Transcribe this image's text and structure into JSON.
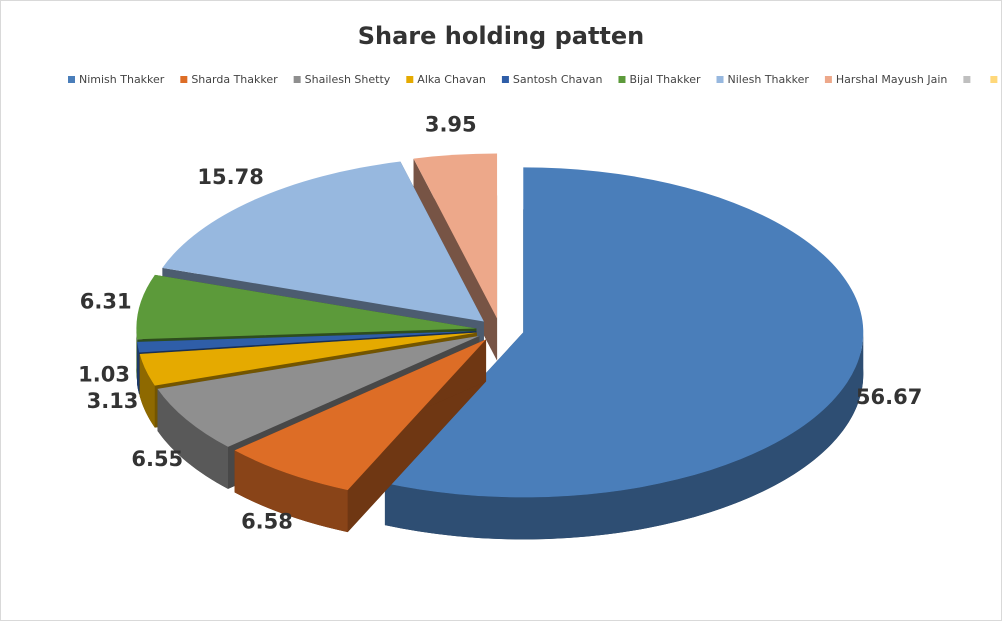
{
  "chart_data": {
    "type": "pie",
    "title": "Share holding patten",
    "categories": [
      "Nimish Thakker",
      "Sharda Thakker",
      "Shailesh Shetty",
      "Alka Chavan",
      "Santosh Chavan",
      "Bijal Thakker",
      "Nilesh Thakker",
      "Harshal Mayush Jain",
      null,
      null,
      null
    ],
    "values": [
      56.67,
      6.58,
      6.55,
      3.13,
      1.03,
      6.31,
      15.78,
      3.95,
      null,
      null,
      null
    ],
    "colors": [
      "#4a7eba",
      "#dd6d26",
      "#8f8f8f",
      "#e5aa00",
      "#2f5ea8",
      "#5c9a3a",
      "#97b8df",
      "#eda88a",
      "#bfbfbf",
      "#ffd87a",
      "#8eaadb"
    ],
    "legend": "top"
  }
}
